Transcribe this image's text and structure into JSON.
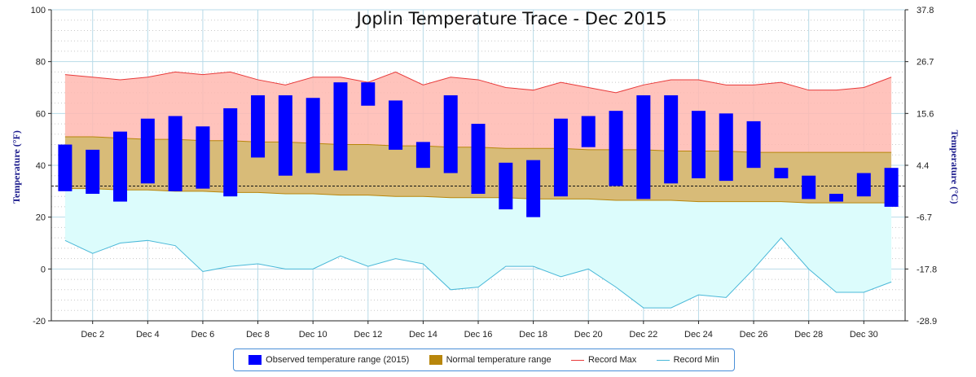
{
  "chart_data": {
    "type": "bar",
    "title": "Joplin Temperature Trace - Dec 2015",
    "ylabel": "Temperature (°F)",
    "ylabel_right": "Temperature (°C)",
    "ylim": [
      -20,
      100
    ],
    "y_ticks": [
      -20,
      0,
      20,
      40,
      60,
      80,
      100
    ],
    "y_right_ticks": [
      "-28.9",
      "-17.8",
      "-6.7",
      "4.4",
      "15.6",
      "26.7",
      "37.8"
    ],
    "x_ticks": [
      "Dec 2",
      "Dec 4",
      "Dec 6",
      "Dec 8",
      "Dec 10",
      "Dec 12",
      "Dec 14",
      "Dec 16",
      "Dec 18",
      "Dec 20",
      "Dec 22",
      "Dec 24",
      "Dec 26",
      "Dec 28",
      "Dec 30"
    ],
    "days": [
      1,
      2,
      3,
      4,
      5,
      6,
      7,
      8,
      9,
      10,
      11,
      12,
      13,
      14,
      15,
      16,
      17,
      18,
      19,
      20,
      21,
      22,
      23,
      24,
      25,
      26,
      27,
      28,
      29,
      30,
      31
    ],
    "freezing_line": 32,
    "grid": true,
    "legend_position": "bottom",
    "series": [
      {
        "name": "Observed temperature range (2015)",
        "color": "#0000ff",
        "low": [
          30,
          29,
          26,
          33,
          30,
          31,
          28,
          43,
          36,
          37,
          38,
          63,
          46,
          39,
          37,
          29,
          23,
          20,
          28,
          47,
          32,
          27,
          33,
          35,
          34,
          39,
          35,
          27,
          26,
          28,
          24
        ],
        "high": [
          48,
          46,
          53,
          58,
          59,
          55,
          62,
          67,
          67,
          66,
          72,
          72,
          65,
          49,
          67,
          56,
          41,
          42,
          58,
          59,
          61,
          67,
          67,
          61,
          60,
          57,
          39,
          36,
          29,
          37,
          39
        ]
      },
      {
        "name": "Normal temperature range",
        "color": "#b8860b",
        "low": [
          31,
          31,
          30.5,
          30.5,
          30,
          30,
          29.5,
          29.5,
          29,
          29,
          28.5,
          28.5,
          28,
          28,
          27.5,
          27.5,
          27.5,
          27,
          27,
          27,
          26.5,
          26.5,
          26.5,
          26,
          26,
          26,
          26,
          25.5,
          25.5,
          25.5,
          25.5
        ],
        "high": [
          51,
          51,
          50.5,
          50,
          50,
          49.5,
          49.5,
          49,
          49,
          48.5,
          48,
          48,
          47.5,
          47.5,
          47,
          47,
          46.5,
          46.5,
          46.5,
          46,
          46,
          46,
          45.5,
          45.5,
          45.5,
          45,
          45,
          45,
          45,
          45,
          45
        ]
      },
      {
        "name": "Record Max",
        "color": "#e83a3a",
        "values": [
          75,
          74,
          73,
          74,
          76,
          75,
          76,
          73,
          71,
          74,
          74,
          72,
          76,
          71,
          74,
          73,
          70,
          69,
          72,
          70,
          68,
          71,
          73,
          73,
          71,
          71,
          72,
          69,
          69,
          70,
          74
        ]
      },
      {
        "name": "Record Min",
        "color": "#4ab8d8",
        "values": [
          11,
          6,
          10,
          11,
          9,
          -1,
          1,
          2,
          0,
          0,
          5,
          1,
          4,
          2,
          -8,
          -7,
          1,
          1,
          -3,
          0,
          -7,
          -15,
          -15,
          -10,
          -11,
          0,
          12,
          0,
          -9,
          -9,
          -5
        ]
      }
    ]
  }
}
